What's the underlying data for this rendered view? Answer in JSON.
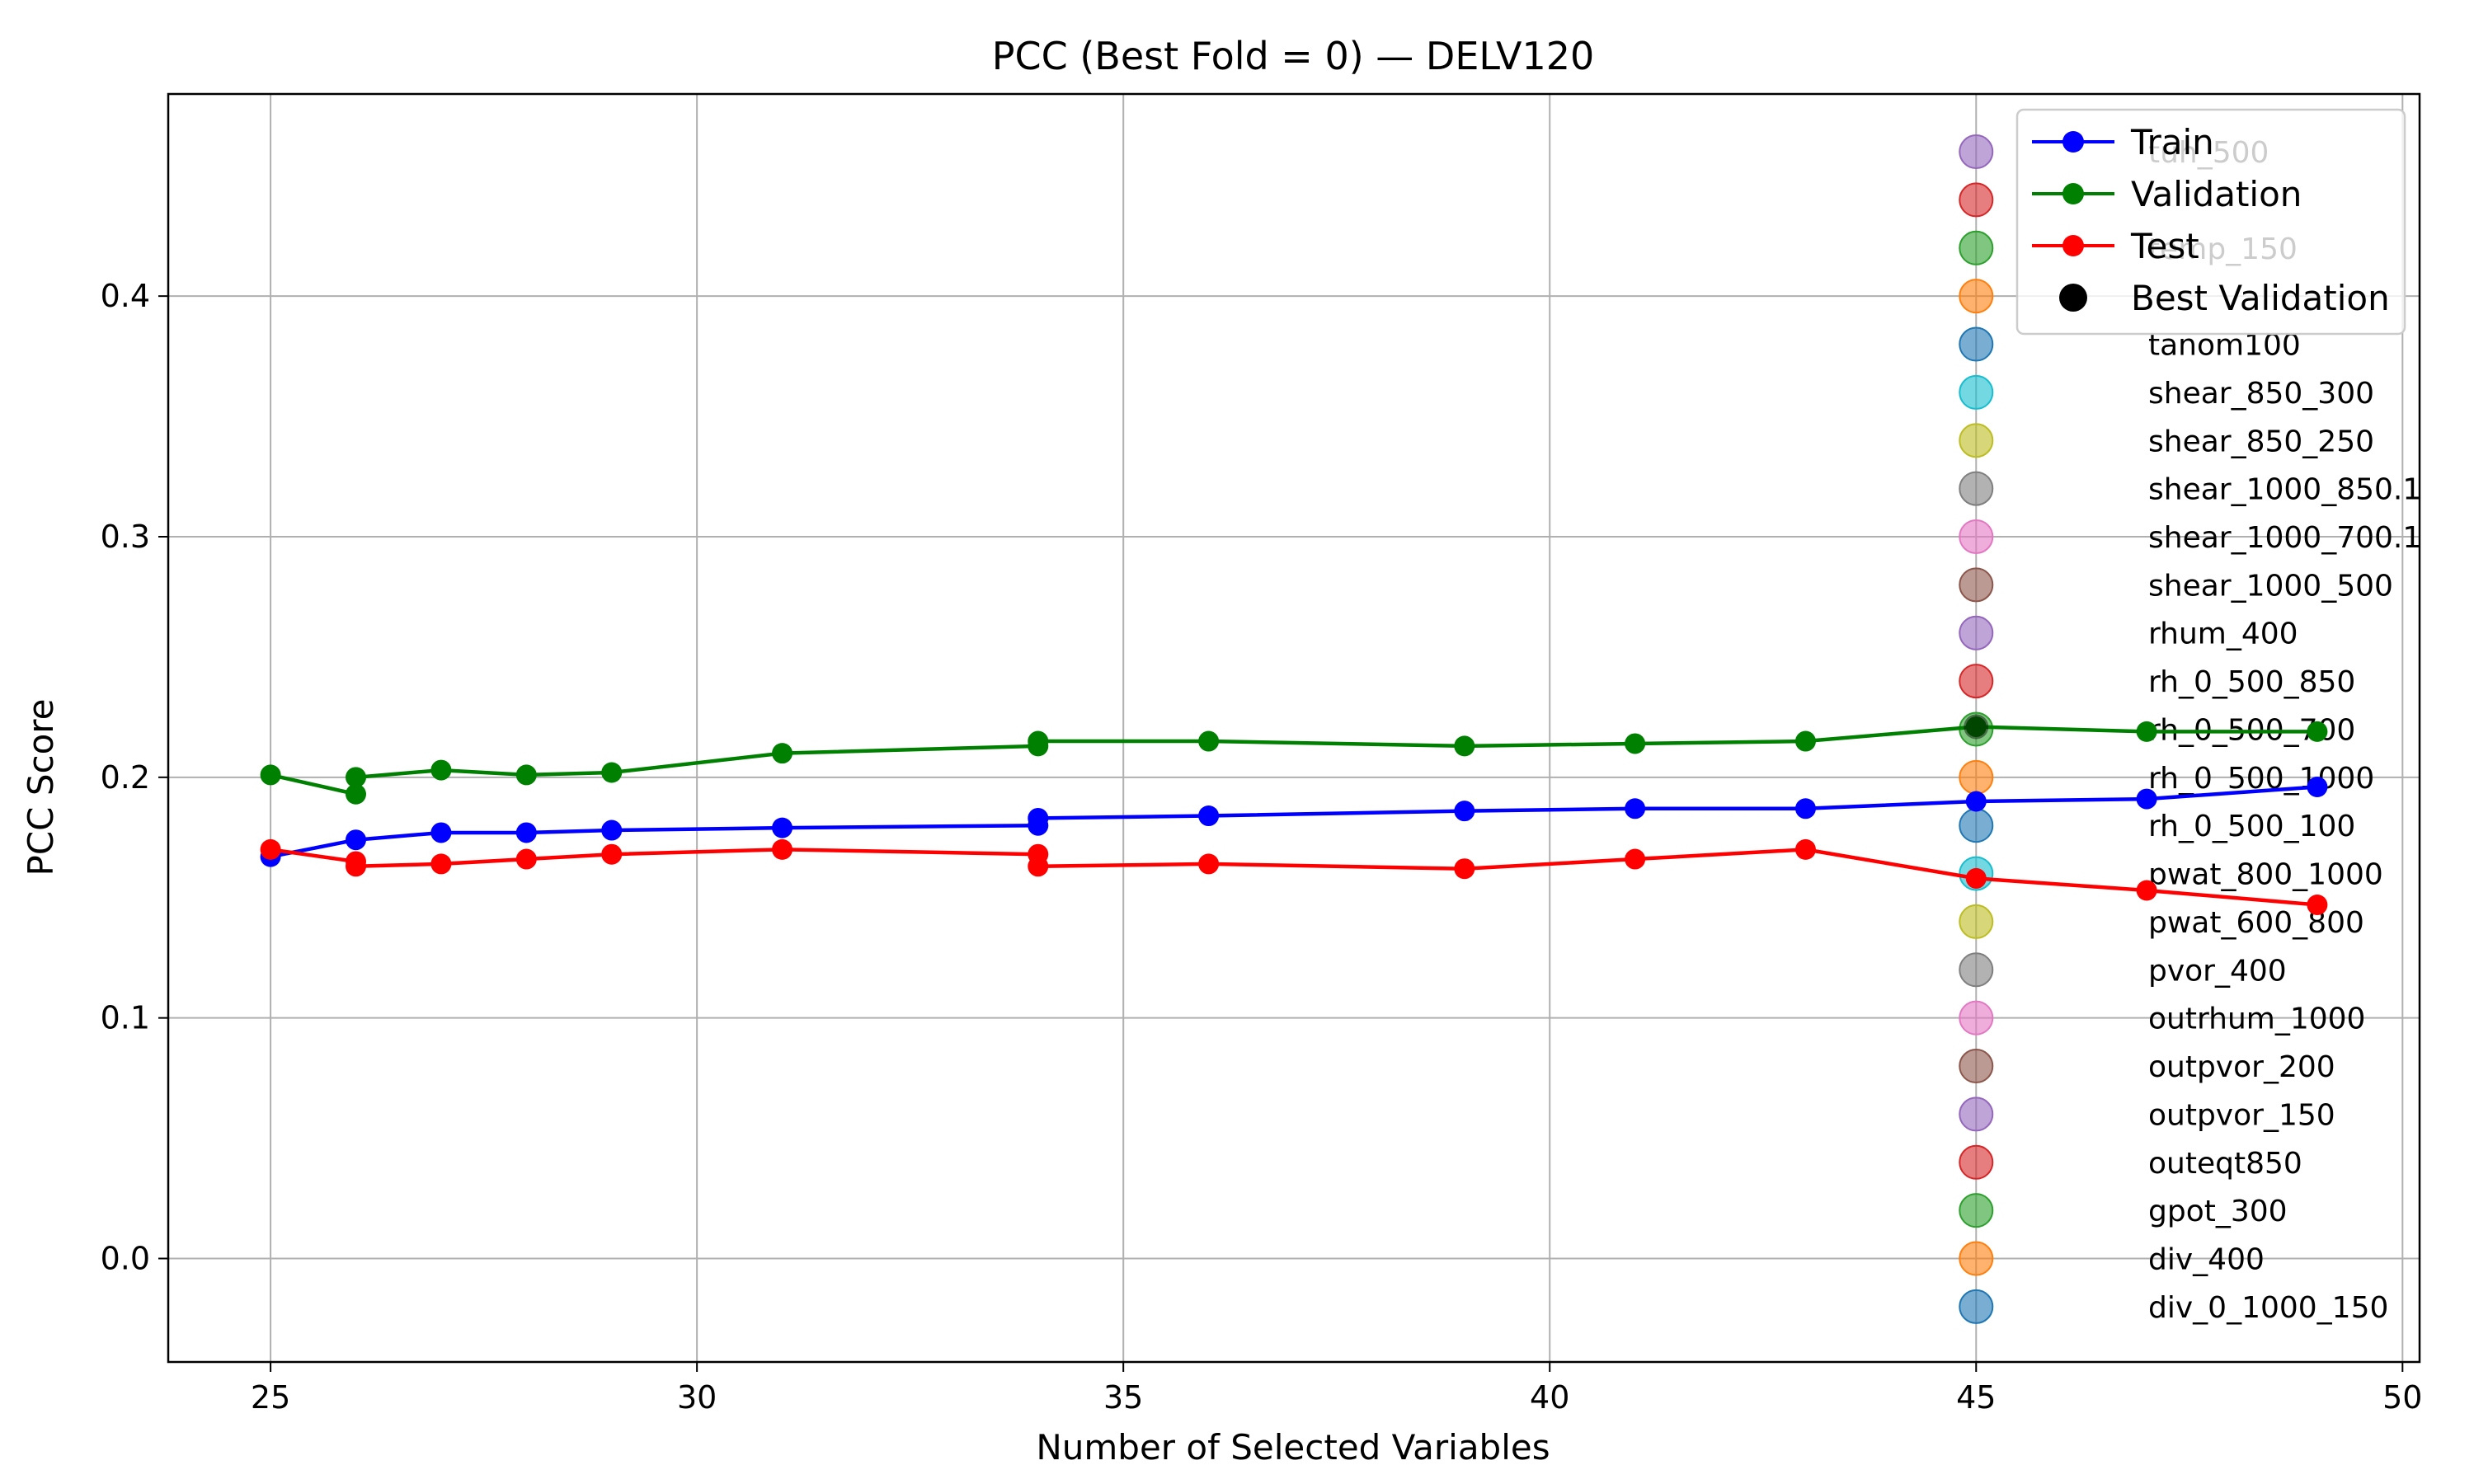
{
  "chart_data": {
    "type": "line",
    "title": "PCC (Best Fold = 0) — DELV120",
    "xlabel": "Number of Selected Variables",
    "ylabel": "PCC Score",
    "xlim": [
      23.8,
      50.2
    ],
    "ylim": [
      -0.043,
      0.484
    ],
    "xticks": [
      25,
      30,
      35,
      40,
      45,
      50
    ],
    "yticks": [
      0.0,
      0.1,
      0.2,
      0.3,
      0.4
    ],
    "xtick_labels": [
      "25",
      "30",
      "35",
      "40",
      "45",
      "50"
    ],
    "ytick_labels": [
      "0.0",
      "0.1",
      "0.2",
      "0.3",
      "0.4"
    ],
    "grid": true,
    "legend_position": "top-right",
    "series": [
      {
        "name": "Train",
        "color": "#0000ff",
        "x": [
          25,
          26,
          27,
          28,
          29,
          31,
          34,
          34,
          36,
          39,
          41,
          43,
          45,
          47,
          49
        ],
        "y": [
          0.167,
          0.174,
          0.177,
          0.177,
          0.178,
          0.179,
          0.18,
          0.183,
          0.184,
          0.186,
          0.187,
          0.187,
          0.19,
          0.191,
          0.196
        ]
      },
      {
        "name": "Validation",
        "color": "#008000",
        "x": [
          25,
          26,
          26,
          27,
          28,
          29,
          31,
          34,
          34,
          36,
          39,
          41,
          43,
          45,
          47,
          49
        ],
        "y": [
          0.201,
          0.193,
          0.2,
          0.203,
          0.201,
          0.202,
          0.21,
          0.213,
          0.215,
          0.215,
          0.213,
          0.214,
          0.215,
          0.221,
          0.219,
          0.219
        ]
      },
      {
        "name": "Test",
        "color": "#ff0000",
        "x": [
          25,
          26,
          26,
          27,
          28,
          29,
          31,
          34,
          34,
          36,
          39,
          41,
          43,
          45,
          47,
          49
        ],
        "y": [
          0.17,
          0.165,
          0.163,
          0.164,
          0.166,
          0.168,
          0.17,
          0.168,
          0.163,
          0.164,
          0.162,
          0.166,
          0.17,
          0.158,
          0.153,
          0.147
        ]
      }
    ],
    "best_validation": {
      "name": "Best Validation",
      "color": "#000000",
      "x": 45,
      "y": 0.221
    },
    "variable_markers": {
      "x": 45,
      "items": [
        {
          "label": "tuh_500",
          "y": 0.46,
          "color": "#9467bd"
        },
        {
          "label": "",
          "y": 0.44,
          "color": "#d62728"
        },
        {
          "label": "temp_150",
          "y": 0.42,
          "color": "#2ca02c"
        },
        {
          "label": "",
          "y": 0.4,
          "color": "#ff7f0e"
        },
        {
          "label": "tanom100",
          "y": 0.38,
          "color": "#1f77b4"
        },
        {
          "label": "shear_850_300",
          "y": 0.36,
          "color": "#17becf"
        },
        {
          "label": "shear_850_250",
          "y": 0.34,
          "color": "#bcbd22"
        },
        {
          "label": "shear_1000_850.1",
          "y": 0.32,
          "color": "#7f7f7f"
        },
        {
          "label": "shear_1000_700.1",
          "y": 0.3,
          "color": "#e377c2"
        },
        {
          "label": "shear_1000_500",
          "y": 0.28,
          "color": "#8c564b"
        },
        {
          "label": "rhum_400",
          "y": 0.26,
          "color": "#9467bd"
        },
        {
          "label": "rh_0_500_850",
          "y": 0.24,
          "color": "#d62728"
        },
        {
          "label": "rh_0_500_700",
          "y": 0.22,
          "color": "#2ca02c"
        },
        {
          "label": "rh_0_500_1000",
          "y": 0.2,
          "color": "#ff7f0e"
        },
        {
          "label": "rh_0_500_100",
          "y": 0.18,
          "color": "#1f77b4"
        },
        {
          "label": "pwat_800_1000",
          "y": 0.16,
          "color": "#17becf"
        },
        {
          "label": "pwat_600_800",
          "y": 0.14,
          "color": "#bcbd22"
        },
        {
          "label": "pvor_400",
          "y": 0.12,
          "color": "#7f7f7f"
        },
        {
          "label": "outrhum_1000",
          "y": 0.1,
          "color": "#e377c2"
        },
        {
          "label": "outpvor_200",
          "y": 0.08,
          "color": "#8c564b"
        },
        {
          "label": "outpvor_150",
          "y": 0.06,
          "color": "#9467bd"
        },
        {
          "label": "outeqt850",
          "y": 0.04,
          "color": "#d62728"
        },
        {
          "label": "gpot_300",
          "y": 0.02,
          "color": "#2ca02c"
        },
        {
          "label": "div_400",
          "y": 0.0,
          "color": "#ff7f0e"
        },
        {
          "label": "div_0_1000_150",
          "y": -0.02,
          "color": "#1f77b4"
        }
      ]
    }
  }
}
